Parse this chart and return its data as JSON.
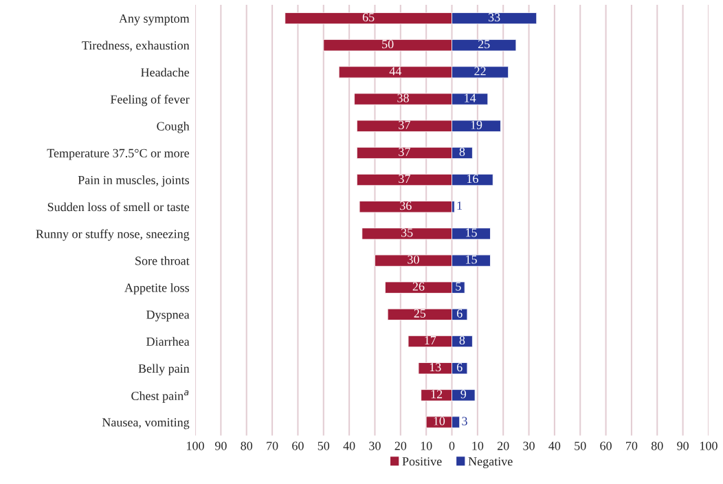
{
  "chart_data": {
    "type": "bar",
    "orientation": "horizontal",
    "stacked": true,
    "data_labels": true,
    "categories": [
      "Any symptom",
      "Tiredness, exhaustion",
      "Headache",
      "Feeling of fever",
      "Cough",
      "Temperature 37.5°C or more",
      "Pain in muscles, joints",
      "Sudden loss of smell or taste",
      "Runny or stuffy nose, sneezing",
      "Sore throat",
      "Appetite loss",
      "Dyspnea",
      "Diarrhea",
      "Belly pain",
      "Chest pain$^{a}$",
      "Nausea, vomiting"
    ],
    "series": [
      {
        "name": "Positive",
        "color": "#a11c38",
        "values": [
          65,
          50,
          44,
          38,
          37,
          37,
          37,
          36,
          35,
          30,
          26,
          25,
          17,
          13,
          12,
          10
        ],
        "base": [
          -65,
          -50,
          -44,
          -38,
          -37,
          -37,
          -37,
          -36,
          -35,
          -30,
          -26,
          -25,
          -17,
          -13,
          -12,
          -10
        ]
      },
      {
        "name": "Negative",
        "color": "#27389a",
        "values": [
          33,
          25,
          22,
          14,
          19,
          8,
          16,
          1,
          15,
          15,
          5,
          6,
          8,
          6,
          9,
          3
        ]
      }
    ],
    "xlim": [
      -100,
      100
    ],
    "xticks": [
      {
        "value": -100,
        "label": "100"
      },
      {
        "value": -90,
        "label": "90"
      },
      {
        "value": -80,
        "label": "80"
      },
      {
        "value": -70,
        "label": "70"
      },
      {
        "value": -60,
        "label": "60"
      },
      {
        "value": -50,
        "label": "50"
      },
      {
        "value": -40,
        "label": "40"
      },
      {
        "value": -30,
        "label": "30"
      },
      {
        "value": -20,
        "label": "20"
      },
      {
        "value": -10,
        "label": "10"
      },
      0,
      10,
      20,
      30,
      40,
      50,
      60,
      70,
      80,
      90,
      100
    ],
    "grid": "x",
    "legend": "bottom"
  }
}
